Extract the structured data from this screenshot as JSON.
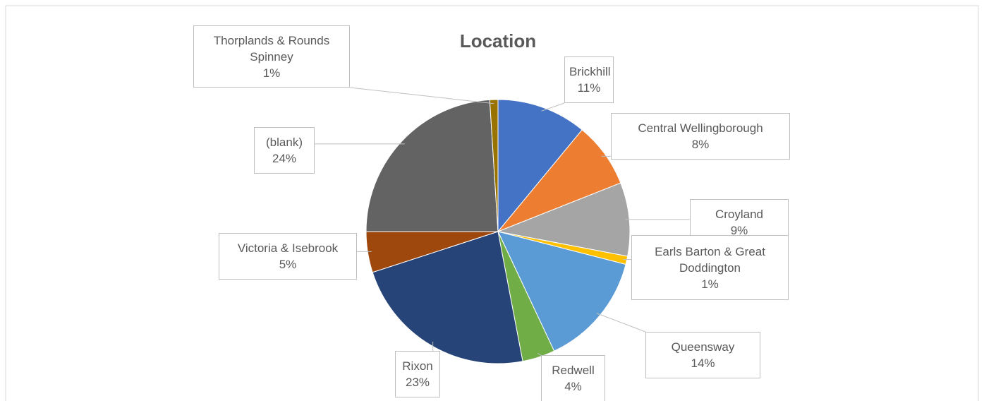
{
  "chart_data": {
    "type": "pie",
    "title": "Location",
    "categories": [
      "Brickhill",
      "Central Wellingborough",
      "Croyland",
      "Earls Barton & Great Doddington",
      "Queensway",
      "Redwell",
      "Rixon",
      "Victoria & Isebrook",
      "(blank)",
      "Thorplands & Rounds Spinney"
    ],
    "values": [
      11,
      8,
      9,
      1,
      14,
      4,
      23,
      5,
      24,
      1
    ],
    "value_labels": [
      "11%",
      "8%",
      "9%",
      "1%",
      "14%",
      "4%",
      "23%",
      "5%",
      "24%",
      "1%"
    ],
    "colors": [
      "#4472c4",
      "#ed7d31",
      "#a5a5a5",
      "#ffc000",
      "#5b9bd5",
      "#70ad47",
      "#264478",
      "#9e480e",
      "#636363",
      "#997300"
    ]
  }
}
